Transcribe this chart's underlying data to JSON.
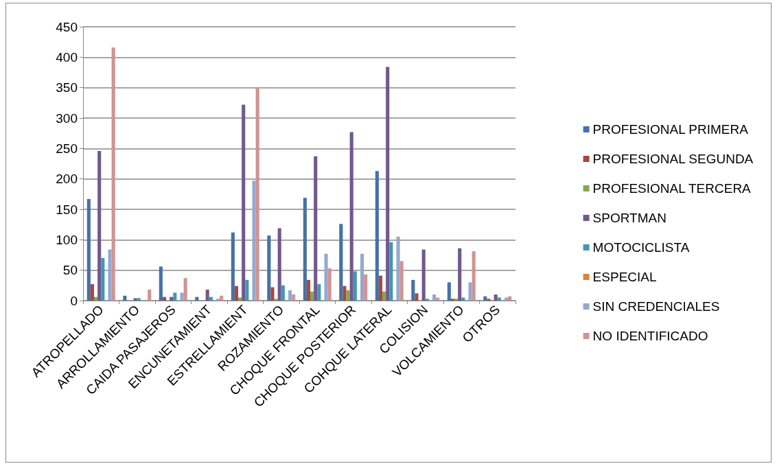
{
  "chart_data": {
    "type": "bar",
    "categories": [
      "ATROPELLADO",
      "ARROLLAMIENTO",
      "CAIDA PASAJEROS",
      "ENCUNETAMIENT",
      "ESTRELLAMIENT",
      "ROZAMIENTO",
      "CHOQUE FRONTAL",
      "CHOQUE POSTERIOR",
      "COHQUE LATERAL",
      "COLISION",
      "VOLCAMIENTO",
      "OTROS"
    ],
    "series": [
      {
        "name": "PROFESIONAL PRIMERA",
        "color": "#4572a7",
        "values": [
          167,
          8,
          56,
          6,
          112,
          107,
          169,
          126,
          213,
          34,
          30,
          7
        ]
      },
      {
        "name": "PROFESIONAL SEGUNDA",
        "color": "#aa4643",
        "values": [
          27,
          0,
          6,
          0,
          24,
          22,
          34,
          24,
          41,
          12,
          3,
          3
        ]
      },
      {
        "name": "PROFESIONAL TERCERA",
        "color": "#89a54e",
        "values": [
          6,
          0,
          0,
          0,
          5,
          3,
          15,
          17,
          15,
          0,
          3,
          0
        ]
      },
      {
        "name": "SPORTMAN",
        "color": "#71588f",
        "values": [
          246,
          4,
          6,
          18,
          322,
          119,
          237,
          277,
          384,
          84,
          86,
          10
        ]
      },
      {
        "name": "MOTOCICLISTA",
        "color": "#4198af",
        "values": [
          70,
          4,
          13,
          6,
          34,
          25,
          27,
          48,
          96,
          3,
          5,
          5
        ]
      },
      {
        "name": "ESPECIAL",
        "color": "#db843d",
        "values": [
          0,
          0,
          0,
          0,
          1,
          0,
          0,
          0,
          0,
          0,
          0,
          0
        ]
      },
      {
        "name": "SIN CREDENCIALES",
        "color": "#93a9cf",
        "values": [
          84,
          0,
          13,
          3,
          197,
          17,
          77,
          77,
          105,
          10,
          30,
          5
        ]
      },
      {
        "name": "NO IDENTIFICADO",
        "color": "#d19392",
        "values": [
          416,
          18,
          37,
          8,
          350,
          10,
          53,
          43,
          65,
          5,
          81,
          7
        ]
      }
    ],
    "ylim": [
      0,
      450
    ],
    "yticks": [
      0,
      50,
      100,
      150,
      200,
      250,
      300,
      350,
      400,
      450
    ],
    "grid": "y",
    "legend": "right"
  }
}
